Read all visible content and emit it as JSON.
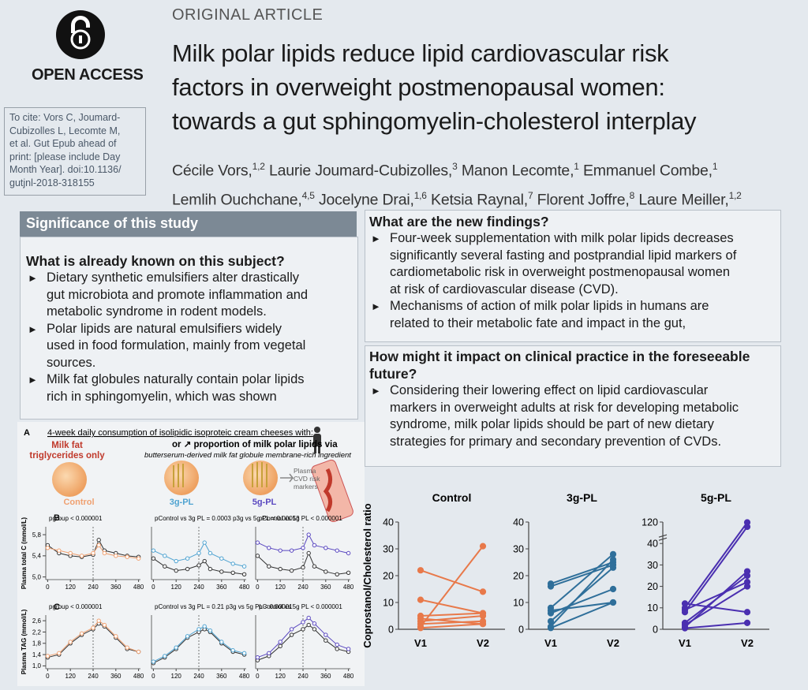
{
  "header": {
    "category": "ORIGINAL ARTICLE",
    "title_lines": [
      "Milk polar lipids reduce lipid cardiovascular risk",
      "factors in overweight postmenopausal women:",
      "towards a gut sphingomyelin-cholesterol interplay"
    ],
    "author_lines": [
      [
        {
          "name": "Cécile Vors,",
          "aff": "1,2"
        },
        {
          "name": "Laurie Joumard-Cubizolles,",
          "aff": "3"
        },
        {
          "name": "Manon Lecomte,",
          "aff": "1"
        },
        {
          "name": "Emmanuel Combe,",
          "aff": "1"
        }
      ],
      [
        {
          "name": "Lemlih Ouchchane,",
          "aff": "4,5"
        },
        {
          "name": "Jocelyne Drai,",
          "aff": "1,6"
        },
        {
          "name": "Ketsia Raynal,",
          "aff": "7"
        },
        {
          "name": "Florent Joffre,",
          "aff": "8"
        },
        {
          "name": "Laure Meiller,",
          "aff": "1,2"
        }
      ]
    ]
  },
  "logo": {
    "label": "OPEN ACCESS"
  },
  "cite": {
    "lines": [
      "To cite: Vors C, Joumard-",
      "Cubizolles L, Lecomte M,",
      "et al. Gut Epub ahead of",
      "print: [please include Day",
      "Month Year]. doi:10.1136/",
      "gutjnl-2018-318155"
    ]
  },
  "significance": {
    "title": "Significance of this study",
    "known": {
      "heading_lines": [
        "What is already known on this subject?"
      ],
      "bullets": [
        {
          "lines": [
            "Dietary synthetic emulsifiers alter drastically",
            "gut microbiota and promote inflammation and",
            "metabolic syndrome in rodent models."
          ]
        },
        {
          "lines": [
            "Polar lipids are natural emulsifiers widely",
            "used in food formulation, mainly from vegetal",
            "sources."
          ]
        },
        {
          "lines": [
            "Milk fat globules naturally contain polar lipids",
            "rich in sphingomyelin, which was shown"
          ]
        }
      ]
    },
    "new": {
      "heading_lines": [
        "What are the new findings?"
      ],
      "bullets": [
        {
          "lines": [
            "Four-week supplementation with milk polar lipids decreases",
            "significantly several fasting and postprandial lipid markers of",
            "cardiometabolic risk in overweight postmenopausal women",
            "at risk of cardiovascular disease (CVD)."
          ]
        },
        {
          "lines": [
            "Mechanisms of action of milk polar lipids in humans are",
            "related to their metabolic fate and impact in the gut,"
          ]
        }
      ]
    },
    "impact": {
      "heading_lines": [
        "How might it impact on clinical practice in the foreseeable",
        "future?"
      ],
      "bullets": [
        {
          "lines": [
            "Considering their lowering effect on lipid cardiovascular",
            "markers in overweight adults at risk for developing metabolic",
            "syndrome, milk polar lipids should be part of new dietary",
            "strategies for primary and secondary prevention of CVDs."
          ]
        }
      ]
    }
  },
  "figure_a": {
    "label": "A",
    "caption": "4-week daily consumption of isolipidic isoproteic cream cheeses with:",
    "left_lines": [
      "Milk fat",
      "triglycerides only"
    ],
    "right_line1": "or ↗ proportion of milk polar lipids via",
    "right_line2": "butterserum-derived milk fat globule membrane-rich ingredient",
    "marker_lines": [
      "Plasma",
      "CVD risk",
      "markers"
    ],
    "groups": [
      {
        "label": "Control",
        "color": "#f0a070"
      },
      {
        "label": "3g-PL",
        "color": "#4fa3d1"
      },
      {
        "label": "5g-PL",
        "color": "#5a48c0"
      }
    ],
    "row_labels": [
      "B",
      "C"
    ]
  },
  "chart_data": [
    {
      "type": "line",
      "title": "pgroup < 0.000001",
      "ylabel": "Plasma total C (mmol/L)",
      "x": [
        0,
        60,
        120,
        180,
        240,
        270,
        300,
        360,
        420,
        480
      ],
      "xlim": [
        -10,
        490
      ],
      "xticks": [
        0,
        120,
        240,
        360,
        480
      ],
      "ylim": [
        4.95,
        5.95
      ],
      "yticks": [
        {
          "value": 5.0,
          "label": "5,0"
        },
        {
          "value": 5.4,
          "label": "5,4"
        },
        {
          "value": 5.8,
          "label": "5,8"
        }
      ],
      "vline": 240,
      "marker": "open",
      "series": [
        {
          "color": "#333333",
          "values": [
            5.6,
            5.45,
            5.4,
            5.38,
            5.42,
            5.7,
            5.5,
            5.45,
            5.4,
            5.38
          ]
        },
        {
          "color": "#f0a070",
          "values": [
            5.55,
            5.5,
            5.45,
            5.4,
            5.45,
            5.6,
            5.45,
            5.4,
            5.38,
            5.35
          ]
        }
      ]
    },
    {
      "type": "line",
      "title": "pControl vs 3g PL = 0.0003   p3g vs 5g PL = 0.00013",
      "x": [
        0,
        60,
        120,
        180,
        240,
        270,
        300,
        360,
        420,
        480
      ],
      "xlim": [
        -10,
        490
      ],
      "xticks": [
        0,
        120,
        240,
        360,
        480
      ],
      "ylim": [
        4.95,
        5.95
      ],
      "vline": 240,
      "marker": "open",
      "series": [
        {
          "color": "#333333",
          "values": [
            5.35,
            5.2,
            5.12,
            5.15,
            5.22,
            5.3,
            5.15,
            5.1,
            5.08,
            5.05
          ]
        },
        {
          "color": "#4fa3d1",
          "values": [
            5.5,
            5.4,
            5.3,
            5.35,
            5.45,
            5.65,
            5.45,
            5.35,
            5.25,
            5.2
          ]
        }
      ]
    },
    {
      "type": "line",
      "title": "pControl vs 5g PL < 0.000001",
      "x": [
        0,
        60,
        120,
        180,
        240,
        270,
        300,
        360,
        420,
        480
      ],
      "xlim": [
        -10,
        490
      ],
      "xticks": [
        0,
        120,
        240,
        360,
        480
      ],
      "ylim": [
        4.95,
        5.95
      ],
      "vline": 240,
      "marker": "open",
      "series": [
        {
          "color": "#333333",
          "values": [
            5.4,
            5.2,
            5.15,
            5.12,
            5.18,
            5.45,
            5.2,
            5.1,
            5.05,
            5.08
          ]
        },
        {
          "color": "#5a48c0",
          "values": [
            5.65,
            5.55,
            5.5,
            5.5,
            5.55,
            5.8,
            5.6,
            5.55,
            5.5,
            5.45
          ]
        }
      ]
    },
    {
      "type": "line",
      "title": "pgroup < 0.000001",
      "ylabel": "Plasma TAG (mmol/L)",
      "x": [
        0,
        60,
        120,
        180,
        240,
        270,
        300,
        360,
        420,
        480
      ],
      "xlim": [
        -10,
        490
      ],
      "xticks": [
        0,
        120,
        240,
        360,
        480
      ],
      "ylim": [
        0.9,
        2.8
      ],
      "yticks": [
        {
          "value": 1.0,
          "label": "1,0"
        },
        {
          "value": 1.4,
          "label": "1,4"
        },
        {
          "value": 1.8,
          "label": "1,8"
        },
        {
          "value": 2.2,
          "label": "2,2"
        },
        {
          "value": 2.6,
          "label": "2,6"
        }
      ],
      "vline": 240,
      "marker": "open",
      "series": [
        {
          "color": "#333333",
          "values": [
            1.3,
            1.4,
            1.8,
            2.1,
            2.3,
            2.5,
            2.4,
            2.0,
            1.6,
            1.5
          ]
        },
        {
          "color": "#f0a070",
          "values": [
            1.35,
            1.45,
            1.85,
            2.15,
            2.35,
            2.6,
            2.45,
            2.05,
            1.65,
            1.5
          ]
        }
      ]
    },
    {
      "type": "line",
      "title": "pControl vs 3g PL = 0.21   p3g vs 5g PL < 0.00001",
      "x": [
        0,
        60,
        120,
        180,
        240,
        270,
        300,
        360,
        420,
        480
      ],
      "xlim": [
        -10,
        490
      ],
      "xticks": [
        0,
        120,
        240,
        360,
        480
      ],
      "ylim": [
        0.9,
        2.8
      ],
      "vline": 240,
      "marker": "open",
      "series": [
        {
          "color": "#333333",
          "values": [
            1.1,
            1.3,
            1.6,
            2.0,
            2.2,
            2.3,
            2.2,
            1.8,
            1.5,
            1.4
          ]
        },
        {
          "color": "#4fa3d1",
          "values": [
            1.15,
            1.35,
            1.65,
            2.05,
            2.3,
            2.4,
            2.25,
            1.85,
            1.55,
            1.45
          ]
        }
      ]
    },
    {
      "type": "line",
      "title": "pControl vs 5g PL < 0.000001",
      "x": [
        0,
        60,
        120,
        180,
        240,
        270,
        300,
        360,
        420,
        480
      ],
      "xlim": [
        -10,
        490
      ],
      "xticks": [
        0,
        120,
        240,
        360,
        480
      ],
      "ylim": [
        0.9,
        2.8
      ],
      "vline": 240,
      "marker": "open",
      "series": [
        {
          "color": "#333333",
          "values": [
            1.2,
            1.35,
            1.7,
            2.1,
            2.3,
            2.45,
            2.3,
            1.9,
            1.6,
            1.5
          ]
        },
        {
          "color": "#5a48c0",
          "values": [
            1.3,
            1.45,
            1.85,
            2.3,
            2.55,
            2.7,
            2.5,
            2.1,
            1.75,
            1.6
          ]
        }
      ]
    },
    {
      "type": "line",
      "title": "Control",
      "ylabel": "Coprostanol/Cholesterol ratio",
      "categories": [
        "V1",
        "V2"
      ],
      "ylim": [
        0,
        40
      ],
      "yticks": [
        0,
        10,
        20,
        30,
        40
      ],
      "marker": "filled",
      "color": "#e8794a",
      "series": [
        {
          "values": [
            22,
            14
          ]
        },
        {
          "values": [
            11,
            6
          ]
        },
        {
          "values": [
            5,
            6
          ]
        },
        {
          "values": [
            3,
            5
          ]
        },
        {
          "values": [
            2,
            3
          ]
        },
        {
          "values": [
            1,
            31
          ]
        },
        {
          "values": [
            0.5,
            2
          ]
        },
        {
          "values": [
            4,
            2
          ]
        }
      ]
    },
    {
      "type": "line",
      "title": "3g-PL",
      "categories": [
        "V1",
        "V2"
      ],
      "ylim": [
        0,
        40
      ],
      "yticks": [
        0,
        10,
        20,
        30,
        40
      ],
      "marker": "filled",
      "color": "#2f6f9a",
      "series": [
        {
          "values": [
            17,
            25
          ]
        },
        {
          "values": [
            16,
            24
          ]
        },
        {
          "values": [
            8,
            28
          ]
        },
        {
          "values": [
            7,
            10
          ]
        },
        {
          "values": [
            6,
            15
          ]
        },
        {
          "values": [
            3,
            23
          ]
        },
        {
          "values": [
            1,
            26
          ]
        },
        {
          "values": [
            0.5,
            10
          ]
        }
      ]
    },
    {
      "type": "line",
      "title": "5g-PL",
      "categories": [
        "V1",
        "V2"
      ],
      "ylim": [
        0,
        120
      ],
      "y_break": 40,
      "yticks": [
        0,
        10,
        20,
        30,
        40,
        120
      ],
      "marker": "filled",
      "color": "#4a2fb0",
      "series": [
        {
          "values": [
            12,
            8
          ]
        },
        {
          "values": [
            10,
            118
          ]
        },
        {
          "values": [
            9,
            22
          ]
        },
        {
          "values": [
            8,
            95
          ]
        },
        {
          "values": [
            3,
            25
          ]
        },
        {
          "values": [
            2,
            20
          ]
        },
        {
          "values": [
            1,
            27
          ]
        },
        {
          "values": [
            0.5,
            3
          ]
        }
      ]
    }
  ]
}
